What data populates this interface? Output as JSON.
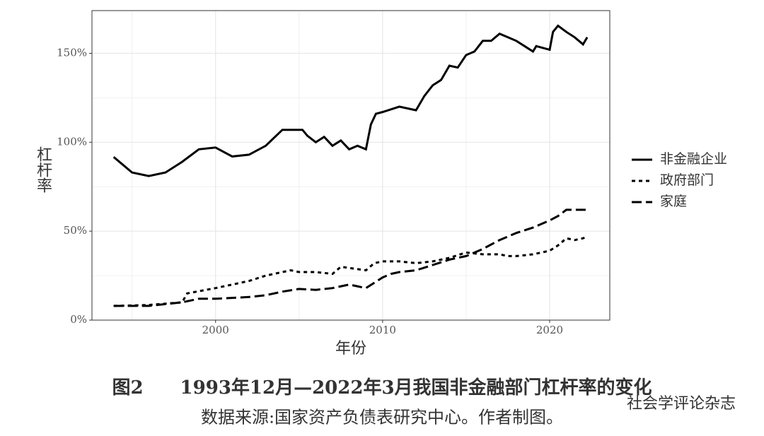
{
  "chart_data": {
    "type": "line",
    "title": "图2　　1993年12月—2022年3月我国非金融部门杠杆率的变化",
    "caption": "数据来源:国家资产负债表研究中心。作者制图。",
    "watermark": "社会学评论杂志",
    "x_label": "年份",
    "y_label": "杠杆率",
    "xlim": [
      1992.6,
      2023.6
    ],
    "xticks": [
      2000,
      2010,
      2020
    ],
    "ylim": [
      0,
      174
    ],
    "yticks": [
      {
        "value": 0,
        "label": "0%"
      },
      {
        "value": 50,
        "label": "50%"
      },
      {
        "value": 100,
        "label": "100%"
      },
      {
        "value": 150,
        "label": "150%"
      }
    ],
    "grid": true,
    "legend": "right",
    "series": [
      {
        "name": "非金融企业",
        "color": "#000000",
        "line_style": "solid",
        "x": [
          1993.9,
          1995,
          1996,
          1997,
          1998,
          1999,
          2000,
          2001,
          2002,
          2003,
          2004,
          2005,
          2005.2,
          2005.5,
          2006,
          2006.5,
          2007,
          2007.5,
          2008,
          2008.5,
          2009,
          2009.3,
          2009.6,
          2010,
          2011,
          2012,
          2012.5,
          2013,
          2013.5,
          2014,
          2014.5,
          2015,
          2015.5,
          2016,
          2016.5,
          2017,
          2017.5,
          2018,
          2018.5,
          2019,
          2019.2,
          2020,
          2020.2,
          2020.5,
          2021,
          2021.5,
          2022,
          2022.25
        ],
        "values": [
          91.7,
          83,
          81,
          83,
          89,
          96,
          97,
          92,
          93,
          98,
          107,
          107,
          107,
          103.6,
          100,
          103,
          98,
          101,
          96,
          98,
          96,
          110,
          116,
          117,
          120,
          118,
          126,
          132,
          135,
          143,
          142,
          149,
          151,
          157,
          157,
          161,
          159,
          157,
          154,
          151,
          154,
          152,
          162,
          165.5,
          162,
          159,
          155,
          159
        ]
      },
      {
        "name": "政府部门",
        "color": "#000000",
        "line_style": "dotted",
        "x": [
          1993.9,
          1996,
          1998,
          1998.3,
          2000,
          2001,
          2002,
          2003,
          2004,
          2004.5,
          2005,
          2006,
          2007,
          2007.5,
          2009,
          2009.5,
          2010,
          2011,
          2012,
          2013,
          2014,
          2015,
          2016,
          2017,
          2017.5,
          2018,
          2019,
          2020,
          2020.5,
          2021,
          2021.5,
          2022,
          2022.25
        ],
        "values": [
          8,
          8.5,
          10,
          15,
          18,
          20,
          22,
          25,
          27,
          28,
          27,
          27,
          26,
          30,
          28,
          32,
          33,
          33,
          32,
          33,
          35,
          38,
          37,
          37,
          36,
          36,
          37,
          39,
          42,
          46,
          45,
          46,
          47
        ]
      },
      {
        "name": "家庭",
        "color": "#000000",
        "line_style": "dashed",
        "x": [
          1993.9,
          1996,
          1998,
          1999,
          2000,
          2002,
          2003,
          2004,
          2005,
          2006,
          2007,
          2008,
          2009,
          2010,
          2010.5,
          2011,
          2012,
          2013,
          2014,
          2015,
          2016,
          2017,
          2018,
          2019,
          2020,
          2020.5,
          2021,
          2022.25
        ],
        "values": [
          8,
          8,
          10,
          12,
          12,
          13,
          14,
          16,
          17.5,
          17,
          18,
          20,
          18,
          24,
          26,
          27,
          28,
          31,
          34,
          36,
          40,
          45,
          49,
          52,
          56,
          58.5,
          62,
          62
        ]
      }
    ]
  }
}
